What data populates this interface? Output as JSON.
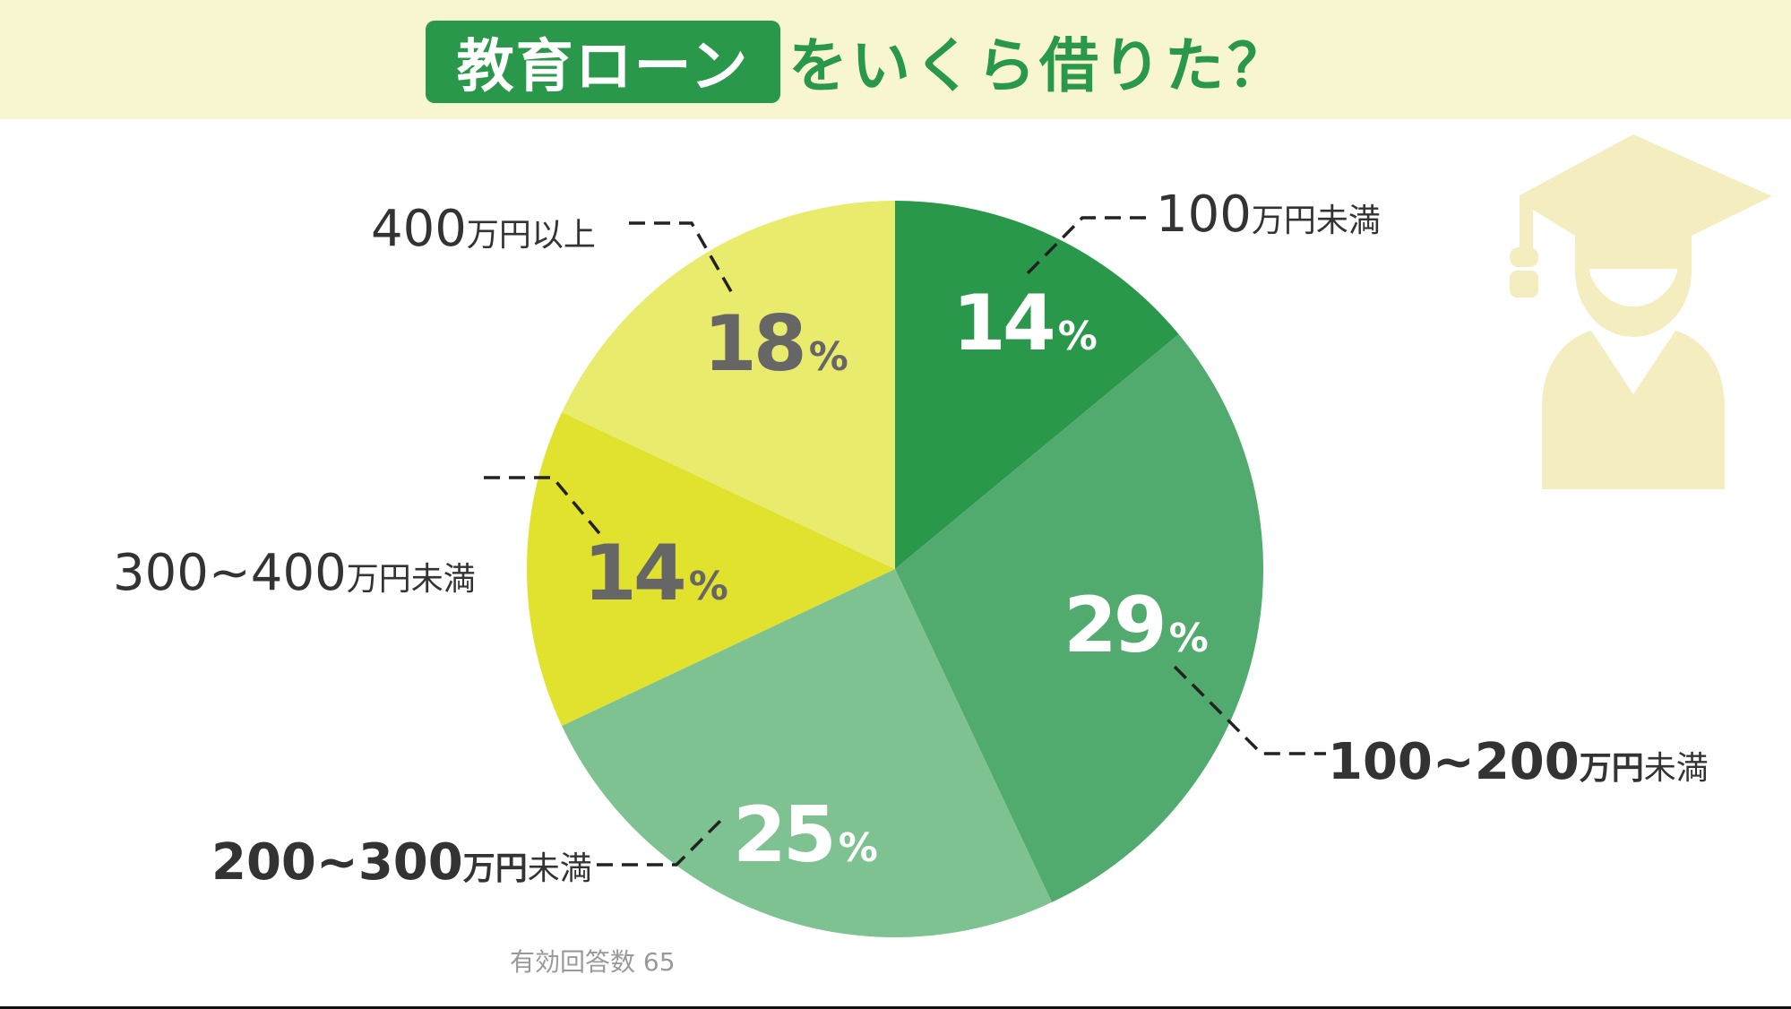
{
  "header": {
    "title_highlight": "教育ローン",
    "title_rest": "をいくら借りた？"
  },
  "colors": {
    "header_bg": "#F7F6D0",
    "brand_green": "#2A984A",
    "icon_fill": "#F3EDC0"
  },
  "chart_data": {
    "type": "pie",
    "title": "教育ローンをいくら借りた？",
    "start_angle": "12 o'clock, clockwise",
    "categories": [
      "100万円未満",
      "100~200万円未満",
      "200~300万円未満",
      "300~400万円未満",
      "400万円以上"
    ],
    "values": [
      14,
      29,
      25,
      14,
      18
    ],
    "unit": "%",
    "colors": [
      "#2A984A",
      "#52AB6E",
      "#7FC291",
      "#E1E22E",
      "#E9EB6D"
    ],
    "label_colors": [
      "#ffffff",
      "#ffffff",
      "#ffffff",
      "#666666",
      "#666666"
    ],
    "note": "有効回答数 65",
    "legend": "none (leader-line callouts)"
  },
  "slices": [
    {
      "pct": "14",
      "sign": "%",
      "label_num": "100",
      "label_unit1": "万円",
      "label_unit2": "未満"
    },
    {
      "pct": "29",
      "sign": "%",
      "label_num": "100~200",
      "label_unit1": "万円",
      "label_unit2": "未満"
    },
    {
      "pct": "25",
      "sign": "%",
      "label_num": "200~300",
      "label_unit1": "万円",
      "label_unit2": "未満"
    },
    {
      "pct": "14",
      "sign": "%",
      "label_num": "300~400",
      "label_unit1": "万円",
      "label_unit2": "未満"
    },
    {
      "pct": "18",
      "sign": "%",
      "label_num": "400",
      "label_unit1": "万円",
      "label_unit2": "以上"
    }
  ],
  "footer": {
    "note": "有効回答数 65"
  },
  "icons": {
    "decoration": "graduate-icon"
  }
}
